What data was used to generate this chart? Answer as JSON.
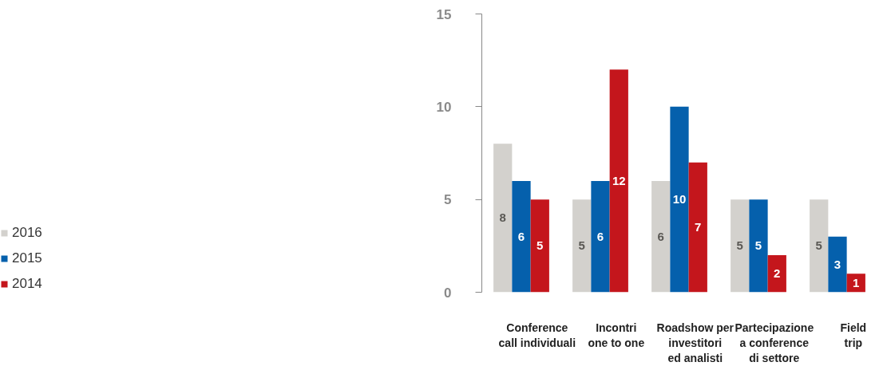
{
  "chart_data": {
    "type": "bar",
    "categories": [
      "Conference\ncall individuali",
      "Incontri\none to one",
      "Roadshow per\ninvestitori\ned analisti",
      "Partecipazione\na conference\ndi settore",
      "Field\ntrip"
    ],
    "series": [
      {
        "name": "2016",
        "color": "#d3d1cd",
        "values": [
          8,
          5,
          6,
          5,
          5
        ]
      },
      {
        "name": "2015",
        "color": "#0560ac",
        "values": [
          6,
          6,
          10,
          5,
          3
        ]
      },
      {
        "name": "2014",
        "color": "#c4161c",
        "values": [
          5,
          12,
          7,
          2,
          1
        ]
      }
    ],
    "ylim": [
      0,
      15
    ],
    "yticks": [
      0,
      5,
      10,
      15
    ],
    "data_labels": true,
    "legend": "left",
    "grid": false
  }
}
